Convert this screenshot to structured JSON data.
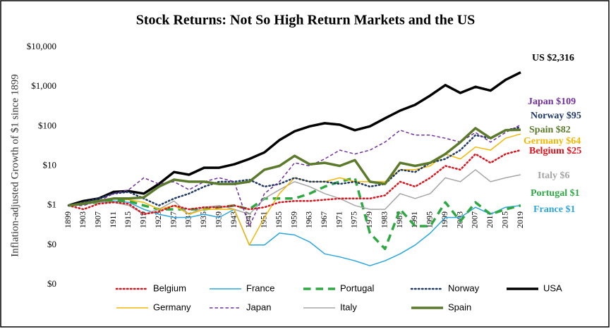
{
  "chart_data": {
    "type": "line",
    "title": "Stock Returns: Not So High Return Markets and the US",
    "y_label": "Inflation-adjusted Growth of $1 since 1899",
    "log_scale": true,
    "grid": false,
    "x": [
      1899,
      1903,
      1907,
      1911,
      1915,
      1919,
      1923,
      1927,
      1931,
      1935,
      1939,
      1943,
      1947,
      1951,
      1955,
      1959,
      1963,
      1967,
      1971,
      1975,
      1979,
      1983,
      1987,
      1991,
      1995,
      1999,
      2003,
      2007,
      2011,
      2015,
      2019
    ],
    "xticks": [
      1899,
      1903,
      1907,
      1911,
      1915,
      1919,
      1923,
      1927,
      1931,
      1935,
      1939,
      1943,
      1947,
      1951,
      1955,
      1959,
      1963,
      1967,
      1971,
      1975,
      1979,
      1983,
      1987,
      1991,
      1995,
      1999,
      2003,
      2007,
      2011,
      2015,
      2019
    ],
    "xlim": [
      1899,
      2019
    ],
    "ylim": [
      0.01,
      10000
    ],
    "yticks": [
      {
        "value": 10000,
        "label": "$10,000"
      },
      {
        "value": 1000,
        "label": "$1,000"
      },
      {
        "value": 100,
        "label": "$100"
      },
      {
        "value": 10,
        "label": "$10"
      },
      {
        "value": 1,
        "label": "$1"
      },
      {
        "value": 0.1,
        "label": "$0"
      },
      {
        "value": 0.01,
        "label": "$0"
      }
    ],
    "series": [
      {
        "name": "Belgium",
        "label": "Belgium $25",
        "color": "#e0101a",
        "style": "dotted",
        "weight": "medium",
        "values": [
          1,
          0.8,
          1.1,
          1.2,
          1.1,
          0.6,
          0.7,
          1,
          0.8,
          0.9,
          0.9,
          1,
          0.8,
          0.9,
          1.2,
          1.3,
          1.3,
          1.4,
          1.5,
          1.5,
          1.5,
          1.8,
          4,
          3,
          5,
          10,
          8,
          20,
          12,
          20,
          25
        ]
      },
      {
        "name": "France",
        "label": "France $1",
        "color": "#2aa6dc",
        "style": "solid",
        "weight": "light",
        "values": [
          1,
          1.1,
          1.2,
          1.3,
          1.2,
          0.8,
          0.6,
          0.5,
          0.5,
          0.6,
          0.5,
          0.8,
          0.1,
          0.1,
          0.2,
          0.18,
          0.12,
          0.06,
          0.05,
          0.04,
          0.03,
          0.04,
          0.06,
          0.1,
          0.2,
          0.5,
          0.5,
          0.9,
          0.6,
          0.9,
          1
        ]
      },
      {
        "name": "Portugal",
        "label": "Portugal $1",
        "color": "#2ea843",
        "style": "dashed",
        "weight": "heavy",
        "values": [
          1,
          1.1,
          1.2,
          1.3,
          1.3,
          1,
          0.8,
          0.8,
          0.8,
          0.8,
          0.9,
          1,
          0.8,
          1.5,
          1.5,
          1.5,
          2,
          3,
          4,
          5,
          0.2,
          0.08,
          0.8,
          0.3,
          0.3,
          1.2,
          0.4,
          1.2,
          0.6,
          0.8,
          1
        ]
      },
      {
        "name": "Norway",
        "label": "Norway $95",
        "color": "#1f3864",
        "style": "dotted",
        "weight": "medium",
        "values": [
          1,
          1.2,
          1.5,
          2,
          2.2,
          1.5,
          1,
          1.5,
          2,
          3,
          4,
          4,
          4.5,
          3,
          3.5,
          5,
          4,
          4,
          3.5,
          4,
          3,
          3.5,
          8,
          7,
          12,
          15,
          25,
          60,
          50,
          80,
          95
        ]
      },
      {
        "name": "USA",
        "label": "US $2,316",
        "color": "#000000",
        "style": "solid",
        "weight": "heavy",
        "values": [
          1,
          1.3,
          1.5,
          2.2,
          2.3,
          2,
          3.5,
          7,
          6,
          9,
          9,
          11,
          15,
          22,
          45,
          75,
          100,
          120,
          110,
          80,
          100,
          160,
          250,
          350,
          600,
          1100,
          700,
          1000,
          800,
          1500,
          2316
        ]
      },
      {
        "name": "Germany",
        "label": "Germany $64",
        "color": "#f2b705",
        "style": "solid",
        "weight": "light",
        "values": [
          1,
          1.2,
          1.3,
          1.5,
          1.4,
          1.2,
          0.8,
          1,
          0.6,
          0.8,
          0.8,
          0.8,
          0.1,
          0.5,
          2,
          5,
          4,
          4,
          5,
          4,
          4,
          4,
          8,
          8,
          10,
          20,
          15,
          30,
          25,
          50,
          64
        ]
      },
      {
        "name": "Japan",
        "label": "Japan $109",
        "color": "#7030a0",
        "style": "dashed",
        "weight": "light",
        "values": [
          1,
          1,
          1.3,
          2,
          2.5,
          5,
          3.5,
          4,
          2.5,
          4,
          5,
          4,
          0.3,
          2,
          4,
          12,
          10,
          15,
          25,
          20,
          25,
          40,
          80,
          60,
          60,
          50,
          40,
          70,
          40,
          70,
          109
        ]
      },
      {
        "name": "Italy",
        "label": "Italy $6",
        "color": "#a6a6a6",
        "style": "solid",
        "weight": "light",
        "values": [
          1,
          1.1,
          1.2,
          1.2,
          1,
          0.6,
          0.8,
          1.3,
          0.6,
          0.9,
          1,
          0.8,
          0.6,
          1.5,
          2.5,
          4,
          3,
          2,
          1.5,
          1,
          0.8,
          0.8,
          2,
          1.5,
          2,
          5,
          4,
          8,
          4,
          5,
          6
        ]
      },
      {
        "name": "Spain",
        "label": "Spain $82",
        "color": "#5b7a2c",
        "style": "solid",
        "weight": "heavy",
        "values": [
          1,
          1.1,
          1.3,
          1.5,
          1.5,
          1.6,
          3,
          4.5,
          4,
          4,
          3.5,
          3.5,
          4,
          8,
          10,
          18,
          11,
          12,
          10,
          14,
          4,
          3.5,
          12,
          10,
          12,
          20,
          40,
          90,
          50,
          80,
          82
        ]
      }
    ]
  }
}
